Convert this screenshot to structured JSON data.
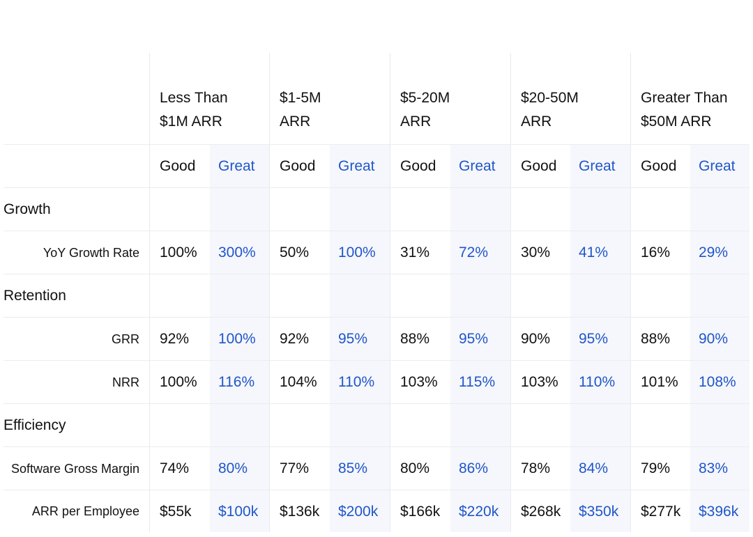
{
  "columns": [
    {
      "line1": "Less Than",
      "line2": "$1M ARR"
    },
    {
      "line1": "$1-5M",
      "line2": "ARR"
    },
    {
      "line1": "$5-20M",
      "line2": "ARR"
    },
    {
      "line1": "$20-50M",
      "line2": "ARR"
    },
    {
      "line1": "Greater Than",
      "line2": "$50M ARR"
    }
  ],
  "sub_headers": {
    "good": "Good",
    "great": "Great"
  },
  "sections": {
    "growth": "Growth",
    "retention": "Retention",
    "efficiency": "Efficiency"
  },
  "rows": {
    "yoy": {
      "label": "YoY Growth Rate",
      "values": [
        "100%",
        "300%",
        "50%",
        "100%",
        "31%",
        "72%",
        "30%",
        "41%",
        "16%",
        "29%"
      ]
    },
    "grr": {
      "label": "GRR",
      "values": [
        "92%",
        "100%",
        "92%",
        "95%",
        "88%",
        "95%",
        "90%",
        "95%",
        "88%",
        "90%"
      ]
    },
    "nrr": {
      "label": "NRR",
      "values": [
        "100%",
        "116%",
        "104%",
        "110%",
        "103%",
        "115%",
        "103%",
        "110%",
        "101%",
        "108%"
      ]
    },
    "sgm": {
      "label": "Software Gross Margin",
      "values": [
        "74%",
        "80%",
        "77%",
        "85%",
        "80%",
        "86%",
        "78%",
        "84%",
        "79%",
        "83%"
      ]
    },
    "arr_emp": {
      "label": "ARR per Employee",
      "values": [
        "$55k",
        "$100k",
        "$136k",
        "$200k",
        "$166k",
        "$220k",
        "$268k",
        "$350k",
        "$277k",
        "$396k"
      ]
    }
  },
  "colors": {
    "great_text": "#1f56c9",
    "great_bg": "#f6f7fc",
    "text": "#111111",
    "divider": "#ececf0"
  }
}
